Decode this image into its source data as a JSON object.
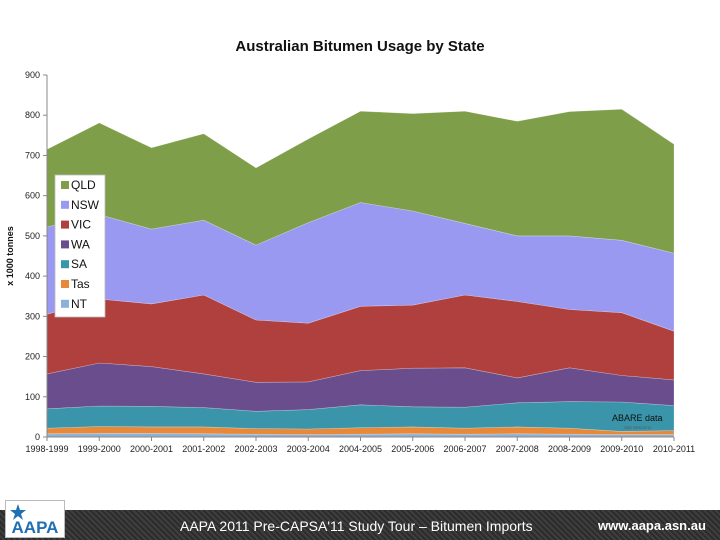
{
  "chart_data": {
    "type": "area",
    "stacked": true,
    "title": "Australian Bitumen Usage by State",
    "ylabel": "x 1000 tonnes",
    "ylim": [
      0,
      900
    ],
    "yticks": [
      0,
      100,
      200,
      300,
      400,
      500,
      600,
      700,
      800,
      900
    ],
    "grid": false,
    "legend_position": "left",
    "categories": [
      "1998-1999",
      "1999-2000",
      "2000-2001",
      "2001-2002",
      "2002-2003",
      "2003-2004",
      "2004-2005",
      "2005-2006",
      "2006-2007",
      "2007-2008",
      "2008-2009",
      "2009-2010",
      "2010-2011"
    ],
    "series": [
      {
        "name": "NT",
        "color": "#8bb2db",
        "values": [
          8,
          9,
          9,
          8,
          7,
          6,
          7,
          8,
          7,
          8,
          7,
          6,
          6
        ]
      },
      {
        "name": "Tas",
        "color": "#e8893a",
        "values": [
          14,
          17,
          16,
          17,
          14,
          14,
          16,
          17,
          15,
          17,
          15,
          8,
          10
        ]
      },
      {
        "name": "SA",
        "color": "#3a95aa",
        "values": [
          48,
          51,
          51,
          48,
          43,
          48,
          57,
          50,
          52,
          60,
          66,
          73,
          62
        ]
      },
      {
        "name": "WA",
        "color": "#6a4d8c",
        "values": [
          87,
          107,
          99,
          84,
          72,
          69,
          85,
          96,
          98,
          62,
          84,
          66,
          64
        ]
      },
      {
        "name": "VIC",
        "color": "#b0403e",
        "values": [
          148,
          159,
          156,
          196,
          155,
          146,
          160,
          157,
          181,
          190,
          145,
          156,
          121
        ]
      },
      {
        "name": "NSW",
        "color": "#9999f2",
        "values": [
          217,
          210,
          186,
          186,
          186,
          250,
          258,
          234,
          178,
          163,
          183,
          180,
          194
        ]
      },
      {
        "name": "QLD",
        "color": "#7f9e4a",
        "values": [
          193,
          228,
          202,
          215,
          192,
          208,
          227,
          242,
          279,
          285,
          309,
          326,
          271
        ]
      }
    ],
    "legend_order": [
      "QLD",
      "NSW",
      "VIC",
      "WA",
      "SA",
      "Tas",
      "NT"
    ],
    "annotation": {
      "text": "ABARE data",
      "subtext": "SEE SPECIFIC"
    }
  },
  "footer": {
    "caption": "AAPA 2011 Pre-CAPSA'11 Study Tour – Bitumen Imports",
    "url": "www.aapa.asn.au",
    "logo_text": "AAPA",
    "color": "#1f6fb5"
  }
}
